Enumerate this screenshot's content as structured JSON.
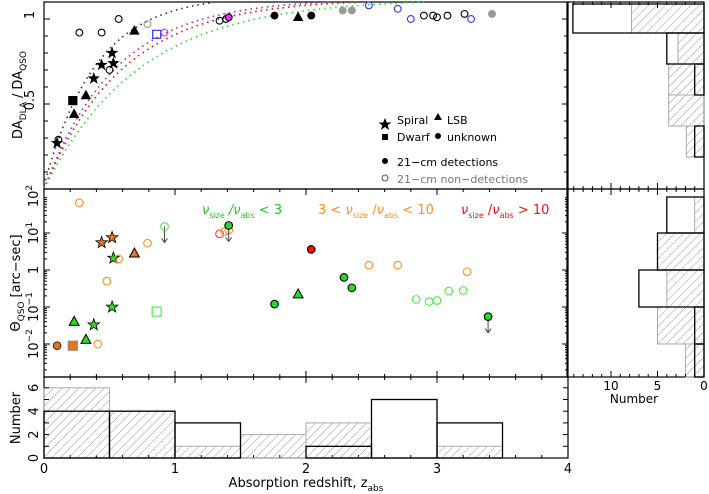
{
  "chart_data": [
    {
      "panel": "top",
      "type": "scatter",
      "ylabel": "DA_DLA / DA_QSO",
      "xlabel": "",
      "xlim": [
        0,
        4
      ],
      "ylim": [
        0,
        1.1
      ],
      "yticks": [
        "0.5",
        "1"
      ],
      "legend": {
        "shapes": [
          {
            "label": "Spiral",
            "marker": "star"
          },
          {
            "label": "LSB",
            "marker": "triangle"
          },
          {
            "label": "Dwarf",
            "marker": "square"
          },
          {
            "label": "unknown",
            "marker": "circle"
          }
        ],
        "fill": [
          {
            "label": "21-cm detections",
            "marker": "filled-circle",
            "color": "#000000"
          },
          {
            "label": "21-cm non-detections",
            "marker": "open-circle",
            "color": "#808080"
          }
        ]
      },
      "curves": [
        {
          "name": "curve-black",
          "color": "#333333"
        },
        {
          "name": "curve-purple",
          "color": "#8a2be2"
        },
        {
          "name": "curve-red",
          "color": "#ff0000"
        },
        {
          "name": "curve-green",
          "color": "#22dd22"
        }
      ],
      "points": [
        {
          "z": 0.1,
          "y": 0.27,
          "marker": "star",
          "fill": "#000",
          "stroke": "#000"
        },
        {
          "z": 0.11,
          "y": 0.29,
          "marker": "circle",
          "fill": "none",
          "stroke": "#000"
        },
        {
          "z": 0.22,
          "y": 0.52,
          "marker": "square",
          "fill": "#000",
          "stroke": "#000"
        },
        {
          "z": 0.23,
          "y": 0.44,
          "marker": "triangle",
          "fill": "#000",
          "stroke": "#000"
        },
        {
          "z": 0.27,
          "y": 0.92,
          "marker": "circle",
          "fill": "none",
          "stroke": "#000"
        },
        {
          "z": 0.32,
          "y": 0.55,
          "marker": "triangle",
          "fill": "#000",
          "stroke": "#000"
        },
        {
          "z": 0.38,
          "y": 0.65,
          "marker": "star",
          "fill": "#000",
          "stroke": "#000"
        },
        {
          "z": 0.44,
          "y": 0.73,
          "marker": "star",
          "fill": "#000",
          "stroke": "#000"
        },
        {
          "z": 0.44,
          "y": 0.92,
          "marker": "circle",
          "fill": "none",
          "stroke": "#000"
        },
        {
          "z": 0.5,
          "y": 0.7,
          "marker": "circle",
          "fill": "none",
          "stroke": "#000"
        },
        {
          "z": 0.52,
          "y": 0.8,
          "marker": "star",
          "fill": "#000",
          "stroke": "#000"
        },
        {
          "z": 0.53,
          "y": 0.74,
          "marker": "star",
          "fill": "#000",
          "stroke": "#000"
        },
        {
          "z": 0.57,
          "y": 1.0,
          "marker": "circle",
          "fill": "none",
          "stroke": "#000"
        },
        {
          "z": 0.69,
          "y": 0.93,
          "marker": "triangle",
          "fill": "#000",
          "stroke": "#000"
        },
        {
          "z": 0.79,
          "y": 0.97,
          "marker": "circle",
          "fill": "none",
          "stroke": "#999"
        },
        {
          "z": 0.86,
          "y": 0.91,
          "marker": "square",
          "fill": "none",
          "stroke": "#3333ff"
        },
        {
          "z": 0.92,
          "y": 0.92,
          "marker": "circle",
          "fill": "none",
          "stroke": "#ee33ee"
        },
        {
          "z": 1.34,
          "y": 0.99,
          "marker": "circle",
          "fill": "none",
          "stroke": "#000"
        },
        {
          "z": 1.39,
          "y": 1.0,
          "marker": "circle",
          "fill": "none",
          "stroke": "#000"
        },
        {
          "z": 1.41,
          "y": 1.01,
          "marker": "circle",
          "fill": "#ee33ee",
          "stroke": "#000"
        },
        {
          "z": 1.76,
          "y": 1.02,
          "marker": "circle",
          "fill": "#000",
          "stroke": "#000"
        },
        {
          "z": 1.94,
          "y": 1.01,
          "marker": "triangle",
          "fill": "#000",
          "stroke": "#000"
        },
        {
          "z": 2.04,
          "y": 1.02,
          "marker": "circle",
          "fill": "#000",
          "stroke": "#000"
        },
        {
          "z": 2.28,
          "y": 1.05,
          "marker": "circle",
          "fill": "#999",
          "stroke": "#999"
        },
        {
          "z": 2.35,
          "y": 1.05,
          "marker": "circle",
          "fill": "#999",
          "stroke": "#999"
        },
        {
          "z": 2.48,
          "y": 1.08,
          "marker": "circle",
          "fill": "none",
          "stroke": "#3333ff"
        },
        {
          "z": 2.7,
          "y": 1.06,
          "marker": "circle",
          "fill": "none",
          "stroke": "#3333ff"
        },
        {
          "z": 2.8,
          "y": 1.0,
          "marker": "circle",
          "fill": "none",
          "stroke": "#3333ff"
        },
        {
          "z": 2.9,
          "y": 1.02,
          "marker": "circle",
          "fill": "none",
          "stroke": "#000"
        },
        {
          "z": 2.97,
          "y": 1.02,
          "marker": "circle",
          "fill": "none",
          "stroke": "#000"
        },
        {
          "z": 3.0,
          "y": 1.01,
          "marker": "circle",
          "fill": "none",
          "stroke": "#000"
        },
        {
          "z": 3.08,
          "y": 1.02,
          "marker": "circle",
          "fill": "none",
          "stroke": "#000"
        },
        {
          "z": 3.21,
          "y": 1.03,
          "marker": "circle",
          "fill": "none",
          "stroke": "#000"
        },
        {
          "z": 3.26,
          "y": 1.0,
          "marker": "circle",
          "fill": "none",
          "stroke": "#3333ff"
        },
        {
          "z": 3.42,
          "y": 1.03,
          "marker": "circle",
          "fill": "#999",
          "stroke": "#999"
        }
      ]
    },
    {
      "panel": "middle",
      "type": "scatter",
      "ylabel": "Θ_QSO [arc-sec]",
      "xlim": [
        0,
        4
      ],
      "ylim_log10": [
        -3,
        2
      ],
      "yticks": [
        "10^-2",
        "10^-1",
        "1",
        "10^1",
        "10^2"
      ],
      "annotations": [
        {
          "text": "ν_size / ν_abs < 3",
          "color": "#22cc22"
        },
        {
          "text": "3 < ν_size / ν_abs < 10",
          "color": "#ff8c1a"
        },
        {
          "text": "ν_size / ν_abs > 10",
          "color": "#ee1111"
        }
      ],
      "points": [
        {
          "z": 0.1,
          "theta": 0.009,
          "marker": "circle",
          "fill": "#e8731a",
          "stroke": "#333"
        },
        {
          "z": 0.22,
          "theta": 0.009,
          "marker": "square",
          "fill": "#e8731a",
          "stroke": "#888"
        },
        {
          "z": 0.23,
          "theta": 0.04,
          "marker": "triangle",
          "fill": "#22dd22",
          "stroke": "#000"
        },
        {
          "z": 0.27,
          "theta": 65,
          "marker": "circle",
          "fill": "none",
          "stroke": "#ff8c1a"
        },
        {
          "z": 0.32,
          "theta": 0.013,
          "marker": "triangle",
          "fill": "#22dd22",
          "stroke": "#000"
        },
        {
          "z": 0.38,
          "theta": 0.033,
          "marker": "star",
          "fill": "#22dd22",
          "stroke": "#000"
        },
        {
          "z": 0.41,
          "theta": 0.01,
          "marker": "circle",
          "fill": "none",
          "stroke": "#ff8c1a"
        },
        {
          "z": 0.44,
          "theta": 5.5,
          "marker": "star",
          "fill": "#e8731a",
          "stroke": "#000"
        },
        {
          "z": 0.48,
          "theta": 0.5,
          "marker": "circle",
          "fill": "none",
          "stroke": "#ff8c1a"
        },
        {
          "z": 0.52,
          "theta": 0.1,
          "marker": "star",
          "fill": "#22dd22",
          "stroke": "#000"
        },
        {
          "z": 0.52,
          "theta": 7.5,
          "marker": "star",
          "fill": "#e8731a",
          "stroke": "#000"
        },
        {
          "z": 0.53,
          "theta": 2.1,
          "marker": "star",
          "fill": "#22dd22",
          "stroke": "#000"
        },
        {
          "z": 0.57,
          "theta": 2.0,
          "marker": "circle",
          "fill": "none",
          "stroke": "#ff8c1a"
        },
        {
          "z": 0.69,
          "theta": 2.8,
          "marker": "triangle",
          "fill": "#e8731a",
          "stroke": "#000"
        },
        {
          "z": 0.79,
          "theta": 5.3,
          "marker": "circle",
          "fill": "none",
          "stroke": "#ff8c1a"
        },
        {
          "z": 0.86,
          "theta": 0.075,
          "marker": "square",
          "fill": "none",
          "stroke": "#44ee44"
        },
        {
          "z": 0.92,
          "theta": 15,
          "marker": "circle",
          "fill": "none",
          "stroke": "#44ee44",
          "upper_limit": true
        },
        {
          "z": 1.34,
          "theta": 9.5,
          "marker": "circle",
          "fill": "none",
          "stroke": "#ff3333"
        },
        {
          "z": 1.38,
          "theta": 11,
          "marker": "circle",
          "fill": "none",
          "stroke": "#ff8c1a"
        },
        {
          "z": 1.41,
          "theta": 12,
          "marker": "circle",
          "fill": "none",
          "stroke": "#ff8c1a"
        },
        {
          "z": 1.41,
          "theta": 16,
          "marker": "circle",
          "fill": "#22dd22",
          "stroke": "#000",
          "upper_limit": true
        },
        {
          "z": 1.76,
          "theta": 0.12,
          "marker": "circle",
          "fill": "#22dd22",
          "stroke": "#000"
        },
        {
          "z": 1.94,
          "theta": 0.22,
          "marker": "triangle",
          "fill": "#22dd22",
          "stroke": "#000"
        },
        {
          "z": 2.04,
          "theta": 3.6,
          "marker": "circle",
          "fill": "#ee1111",
          "stroke": "#000"
        },
        {
          "z": 2.29,
          "theta": 0.63,
          "marker": "circle",
          "fill": "#22dd22",
          "stroke": "#000"
        },
        {
          "z": 2.35,
          "theta": 0.33,
          "marker": "circle",
          "fill": "#22dd22",
          "stroke": "#000"
        },
        {
          "z": 2.48,
          "theta": 1.35,
          "marker": "circle",
          "fill": "none",
          "stroke": "#ff8c1a"
        },
        {
          "z": 2.7,
          "theta": 1.35,
          "marker": "circle",
          "fill": "none",
          "stroke": "#ff8c1a"
        },
        {
          "z": 2.84,
          "theta": 0.16,
          "marker": "circle",
          "fill": "none",
          "stroke": "#44ee44"
        },
        {
          "z": 2.94,
          "theta": 0.14,
          "marker": "circle",
          "fill": "none",
          "stroke": "#44ee44"
        },
        {
          "z": 3.0,
          "theta": 0.15,
          "marker": "circle",
          "fill": "none",
          "stroke": "#44ee44"
        },
        {
          "z": 3.09,
          "theta": 0.27,
          "marker": "circle",
          "fill": "none",
          "stroke": "#44ee44"
        },
        {
          "z": 3.2,
          "theta": 0.28,
          "marker": "circle",
          "fill": "none",
          "stroke": "#44ee44"
        },
        {
          "z": 3.23,
          "theta": 0.9,
          "marker": "circle",
          "fill": "none",
          "stroke": "#ff8c1a"
        },
        {
          "z": 3.39,
          "theta": 0.055,
          "marker": "circle",
          "fill": "#22dd22",
          "stroke": "#000",
          "upper_limit": true
        }
      ]
    },
    {
      "panel": "bottom",
      "type": "bar",
      "ylabel": "Number",
      "xlabel": "Absorption redshift, z_abs",
      "xticks": [
        "0",
        "1",
        "2",
        "3",
        "4"
      ],
      "yticks": [
        "0",
        "2",
        "4",
        "6"
      ],
      "bin_edges": [
        0,
        0.5,
        1.0,
        1.5,
        2.0,
        2.5,
        3.0,
        3.5,
        4.0
      ],
      "series": [
        {
          "name": "21-cm detections (open)",
          "values": [
            4,
            4,
            3,
            0,
            1,
            5,
            3,
            0
          ]
        },
        {
          "name": "21-cm non-detections (hatched)",
          "values": [
            6,
            4,
            1,
            2,
            3,
            0,
            1,
            0
          ]
        }
      ]
    },
    {
      "panels": "right-histograms",
      "type": "bar",
      "orientation": "horizontal",
      "xlabel": "Number",
      "xticks": [
        "10",
        "5",
        "0"
      ],
      "top_histogram": {
        "bin_edges_ratio": [
          1.1,
          0.9,
          0.7,
          0.5,
          0.3
        ],
        "detections": [
          14,
          4,
          1,
          0
        ],
        "non_detections": [
          8,
          2,
          3,
          3
        ]
      },
      "top_histogram_lower_bins": {
        "detections": [
          1
        ],
        "non_detections": [
          1
        ]
      },
      "middle_histogram": {
        "bin_edges_log10": [
          2,
          1,
          0,
          -1,
          -2,
          -3
        ],
        "detections": [
          4,
          5,
          7,
          1,
          1
        ],
        "non_detections": [
          1,
          5,
          4,
          5,
          2
        ]
      }
    }
  ],
  "axes_text": {
    "top_ylabel_main": "DA",
    "top_ylabel_sub1": "DLA",
    "top_ylabel_slash": "/",
    "top_ylabel_main2": "DA",
    "top_ylabel_sub2": "QSO",
    "top_tick_1": "1",
    "top_tick_05": "0.5",
    "mid_ylabel": "Θ",
    "mid_ylabel_sub": "QSO",
    "mid_ylabel_unit": "[arc−sec]",
    "mid_tick_100": "10",
    "mid_tick_100_exp": "2",
    "mid_tick_10": "10",
    "mid_tick_10_exp": "1",
    "mid_tick_1": "1",
    "mid_tick_01": "10",
    "mid_tick_01_exp": "−1",
    "mid_tick_001": "10",
    "mid_tick_001_exp": "−2",
    "bot_ylabel": "Number",
    "bot_ticks": [
      "0",
      "2",
      "4",
      "6"
    ],
    "x_ticks": [
      "0",
      "1",
      "2",
      "3",
      "4"
    ],
    "xlabel": "Absorption redshift, z",
    "xlabel_sub": "abs",
    "right_xlabel": "Number",
    "right_ticks": [
      "10",
      "5",
      "0"
    ]
  },
  "legend_text": {
    "spiral": "Spiral",
    "lsb": "LSB",
    "dwarf": "Dwarf",
    "unknown": "unknown",
    "det": "21−cm detections",
    "nondet": "21−cm non−detections"
  },
  "annotation_text": {
    "nu": "ν",
    "size": "size",
    "abs": "abs",
    "slash": " /",
    "lt3": " < 3",
    "three_lt": "3 < ",
    "lt10": " < 10",
    "gt10": " > 10"
  }
}
